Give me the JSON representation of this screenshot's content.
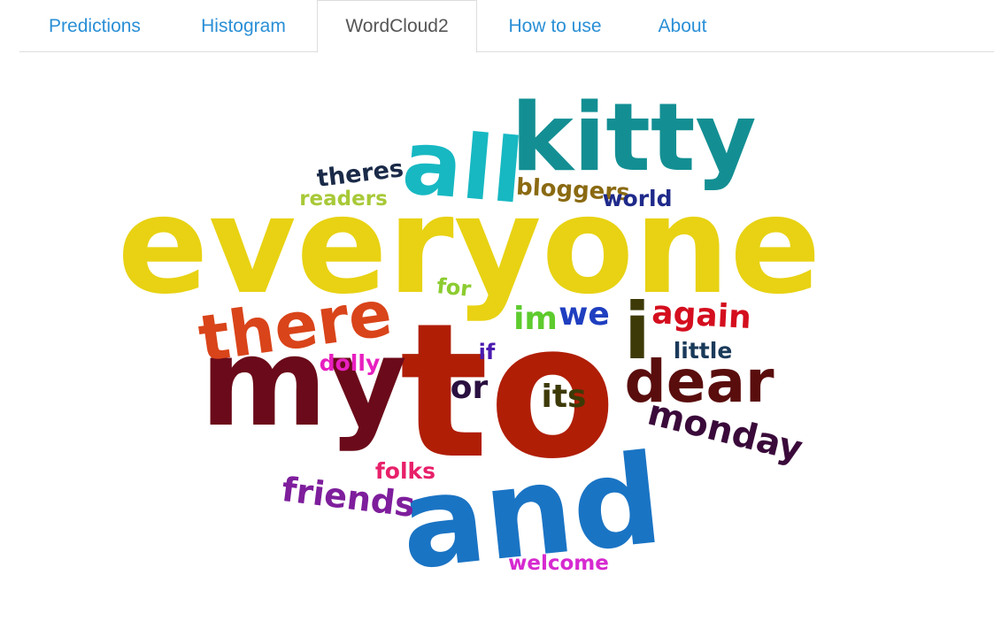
{
  "tabs": [
    {
      "label": "Predictions"
    },
    {
      "label": "Histogram"
    },
    {
      "label": "WordCloud2"
    },
    {
      "label": "How to use"
    },
    {
      "label": "About"
    }
  ],
  "active_tab": "WordCloud2",
  "wordcloud": {
    "words": [
      {
        "text": "everyone",
        "color": "#e8d213"
      },
      {
        "text": "to",
        "color": "#b01e06"
      },
      {
        "text": "my",
        "color": "#6b0a1a"
      },
      {
        "text": "and",
        "color": "#1a74c4"
      },
      {
        "text": "kitty",
        "color": "#138f93"
      },
      {
        "text": "all",
        "color": "#17b8c2"
      },
      {
        "text": "there",
        "color": "#d9441a"
      },
      {
        "text": "dear",
        "color": "#5a0d0d"
      },
      {
        "text": "i",
        "color": "#3d3a08"
      },
      {
        "text": "monday",
        "color": "#3a0a3a"
      },
      {
        "text": "friends",
        "color": "#7e1e9c"
      },
      {
        "text": "again",
        "color": "#d40e1e"
      },
      {
        "text": "its",
        "color": "#3d3a08"
      },
      {
        "text": "im",
        "color": "#5ecb2e"
      },
      {
        "text": "we",
        "color": "#1f3fc0"
      },
      {
        "text": "or",
        "color": "#2a1040"
      },
      {
        "text": "theres",
        "color": "#1a2a48"
      },
      {
        "text": "readers",
        "color": "#a8c938"
      },
      {
        "text": "bloggers",
        "color": "#8a6a12"
      },
      {
        "text": "world",
        "color": "#1f2a8a"
      },
      {
        "text": "for",
        "color": "#8ccc30"
      },
      {
        "text": "if",
        "color": "#4a1ab0"
      },
      {
        "text": "little",
        "color": "#1a3a5a"
      },
      {
        "text": "dolly",
        "color": "#e820c0"
      },
      {
        "text": "folks",
        "color": "#e8206a"
      },
      {
        "text": "welcome",
        "color": "#d62ad0"
      }
    ]
  }
}
